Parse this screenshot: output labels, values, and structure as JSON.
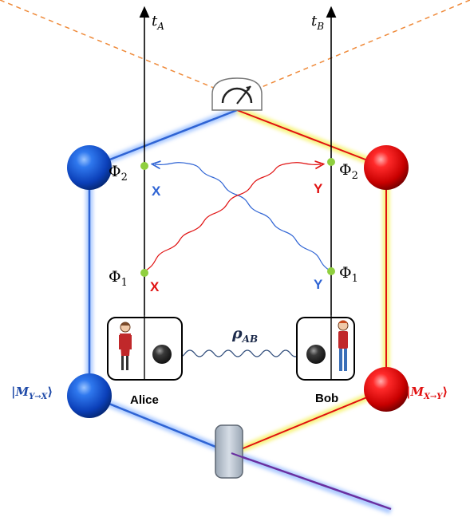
{
  "axes": {
    "alice_time": "t",
    "alice_time_sub": "A",
    "bob_time": "t",
    "bob_time_sub": "B"
  },
  "events": {
    "alice_phi2": "Φ",
    "alice_phi2_sub": "2",
    "alice_phi1": "Φ",
    "alice_phi1_sub": "1",
    "bob_phi2": "Φ",
    "bob_phi2_sub": "2",
    "bob_phi1": "Φ",
    "bob_phi1_sub": "1"
  },
  "settings": {
    "alice_upper": "X",
    "alice_lower": "X",
    "bob_upper": "Y",
    "bob_lower": "Y"
  },
  "state": {
    "rho": "ρ",
    "rho_sub": "AB"
  },
  "agents": {
    "alice": "Alice",
    "bob": "Bob"
  },
  "memories": {
    "left": "|M",
    "left_sub": "Y→X",
    "left_close": "⟩",
    "right": "|M",
    "right_sub": "X→Y",
    "right_close": "⟩"
  },
  "colors": {
    "blue": "#2f64d4",
    "red": "#e01010",
    "yellow_glow": "#f2ee60",
    "purple": "#6a2fa0",
    "orange_dash": "#ef8a3a",
    "event_green": "#8fcf3f"
  },
  "icons": {
    "detector": "meter-icon",
    "alice_figure": "woman-figure-icon",
    "bob_figure": "man-figure-icon"
  }
}
